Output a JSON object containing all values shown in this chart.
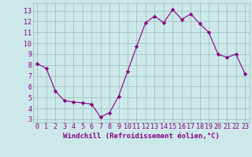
{
  "x": [
    0,
    1,
    2,
    3,
    4,
    5,
    6,
    7,
    8,
    9,
    10,
    11,
    12,
    13,
    14,
    15,
    16,
    17,
    18,
    19,
    20,
    21,
    22,
    23
  ],
  "y": [
    8.1,
    7.7,
    5.6,
    4.7,
    4.6,
    4.5,
    4.4,
    3.2,
    3.6,
    5.1,
    7.4,
    9.7,
    11.9,
    12.5,
    11.9,
    13.1,
    12.2,
    12.7,
    11.8,
    11.0,
    9.0,
    8.7,
    9.0,
    7.2
  ],
  "line_color": "#880088",
  "marker": "D",
  "marker_size": 2.2,
  "bg_color": "#cce8e8",
  "grid_color": "#99bbbb",
  "xlabel": "Windchill (Refroidissement éolien,°C)",
  "xlabel_color": "#880088",
  "xlabel_fontsize": 6.5,
  "tick_color": "#880088",
  "tick_fontsize": 6.0,
  "yticks": [
    3,
    4,
    5,
    6,
    7,
    8,
    9,
    10,
    11,
    12,
    13
  ],
  "xticks": [
    0,
    1,
    2,
    3,
    4,
    5,
    6,
    7,
    8,
    9,
    10,
    11,
    12,
    13,
    14,
    15,
    16,
    17,
    18,
    19,
    20,
    21,
    22,
    23
  ],
  "ylim": [
    2.7,
    13.7
  ],
  "xlim": [
    -0.5,
    23.5
  ]
}
